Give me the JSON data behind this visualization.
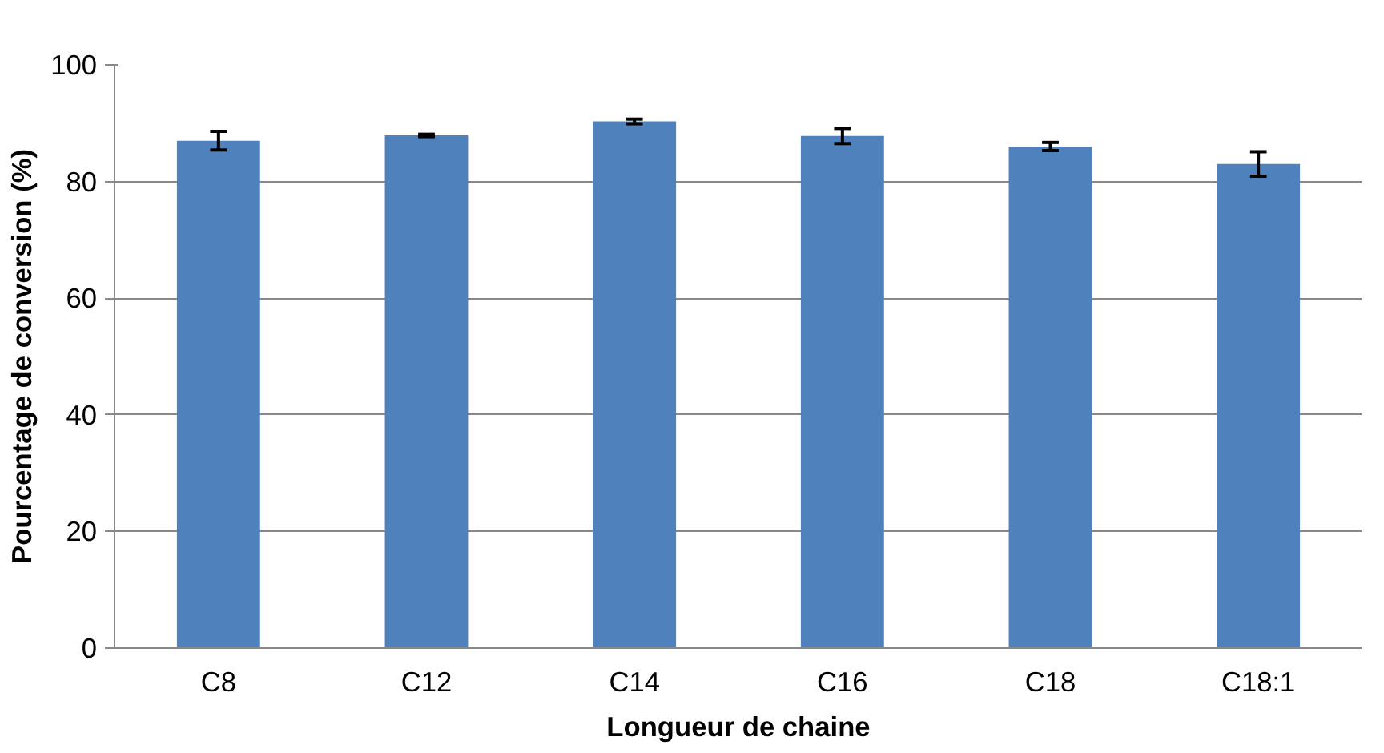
{
  "chart_data": {
    "type": "bar",
    "xlabel": "Longueur de chaine",
    "ylabel": "Pourcentage de conversion (%)",
    "categories": [
      "C8",
      "C12",
      "C14",
      "C16",
      "C18",
      "C18:1"
    ],
    "values": [
      87.0,
      87.9,
      90.3,
      87.8,
      86.0,
      83.0
    ],
    "errors": [
      1.6,
      0.2,
      0.4,
      1.3,
      0.7,
      2.1
    ],
    "color": "#4f81bd",
    "ylim": [
      0,
      100
    ],
    "yticks": [
      0,
      20,
      40,
      60,
      80,
      100
    ],
    "grid": "y"
  }
}
